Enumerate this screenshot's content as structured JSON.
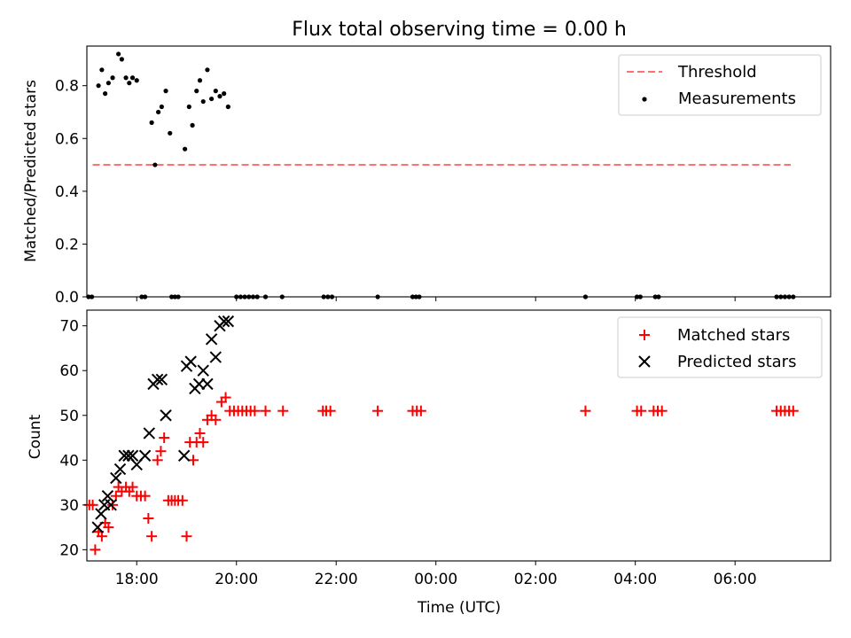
{
  "title": "Flux total observing time = 0.00 h",
  "chart_data": [
    {
      "type": "scatter",
      "ylabel": "Matched/Predicted stars",
      "xlabel": "",
      "xlim": [
        "17:00",
        "07:55"
      ],
      "ylim": [
        0.0,
        0.95
      ],
      "yticks": [
        0.0,
        0.2,
        0.4,
        0.6,
        0.8
      ],
      "ytick_labels": [
        "0.0",
        "0.2",
        "0.4",
        "0.6",
        "0.8"
      ],
      "xticks": [
        "18:00",
        "20:00",
        "22:00",
        "00:00",
        "02:00",
        "04:00",
        "06:00"
      ],
      "legend_position": "top-right",
      "grid": false,
      "threshold": {
        "name": "Threshold",
        "value": 0.5,
        "x_start": "17:07",
        "x_end": "07:07",
        "color": "#ff7070",
        "style": "dashed"
      },
      "series": [
        {
          "name": "Measurements",
          "marker": "dot",
          "color": "#000000",
          "points": [
            [
              "17:14",
              0.8
            ],
            [
              "17:18",
              0.86
            ],
            [
              "17:22",
              0.77
            ],
            [
              "17:26",
              0.81
            ],
            [
              "17:31",
              0.83
            ],
            [
              "17:38",
              0.92
            ],
            [
              "17:42",
              0.9
            ],
            [
              "17:47",
              0.83
            ],
            [
              "17:51",
              0.81
            ],
            [
              "17:55",
              0.83
            ],
            [
              "18:00",
              0.82
            ],
            [
              "18:18",
              0.66
            ],
            [
              "18:22",
              0.5
            ],
            [
              "18:26",
              0.7
            ],
            [
              "18:30",
              0.72
            ],
            [
              "18:35",
              0.78
            ],
            [
              "18:40",
              0.62
            ],
            [
              "18:58",
              0.56
            ],
            [
              "19:03",
              0.72
            ],
            [
              "19:07",
              0.65
            ],
            [
              "19:12",
              0.78
            ],
            [
              "19:16",
              0.82
            ],
            [
              "19:20",
              0.74
            ],
            [
              "19:25",
              0.86
            ],
            [
              "19:30",
              0.75
            ],
            [
              "19:35",
              0.78
            ],
            [
              "19:40",
              0.76
            ],
            [
              "19:45",
              0.77
            ],
            [
              "19:50",
              0.72
            ],
            [
              "17:02",
              0.0
            ],
            [
              "17:06",
              0.0
            ],
            [
              "18:06",
              0.0
            ],
            [
              "18:10",
              0.0
            ],
            [
              "18:42",
              0.0
            ],
            [
              "18:46",
              0.0
            ],
            [
              "18:50",
              0.0
            ],
            [
              "20:00",
              0.0
            ],
            [
              "20:05",
              0.0
            ],
            [
              "20:10",
              0.0
            ],
            [
              "20:15",
              0.0
            ],
            [
              "20:20",
              0.0
            ],
            [
              "20:25",
              0.0
            ],
            [
              "20:35",
              0.0
            ],
            [
              "20:55",
              0.0
            ],
            [
              "21:45",
              0.0
            ],
            [
              "21:50",
              0.0
            ],
            [
              "21:55",
              0.0
            ],
            [
              "22:50",
              0.0
            ],
            [
              "23:32",
              0.0
            ],
            [
              "23:36",
              0.0
            ],
            [
              "23:40",
              0.0
            ],
            [
              "03:00",
              0.0
            ],
            [
              "04:02",
              0.0
            ],
            [
              "04:06",
              0.0
            ],
            [
              "04:24",
              0.0
            ],
            [
              "04:28",
              0.0
            ],
            [
              "06:50",
              0.0
            ],
            [
              "06:55",
              0.0
            ],
            [
              "07:00",
              0.0
            ],
            [
              "07:05",
              0.0
            ],
            [
              "07:10",
              0.0
            ]
          ]
        }
      ]
    },
    {
      "type": "scatter",
      "ylabel": "Count",
      "xlabel": "Time (UTC)",
      "xlim": [
        "17:00",
        "07:55"
      ],
      "ylim": [
        17.5,
        73.5
      ],
      "yticks": [
        20,
        30,
        40,
        50,
        60,
        70
      ],
      "ytick_labels": [
        "20",
        "30",
        "40",
        "50",
        "60",
        "70"
      ],
      "xticks": [
        "18:00",
        "20:00",
        "22:00",
        "00:00",
        "02:00",
        "04:00",
        "06:00"
      ],
      "legend_position": "top-right",
      "grid": false,
      "series": [
        {
          "name": "Matched stars",
          "marker": "plus",
          "color": "#ff0000",
          "points": [
            [
              "17:03",
              30
            ],
            [
              "17:07",
              30
            ],
            [
              "17:10",
              20
            ],
            [
              "17:14",
              24
            ],
            [
              "17:18",
              23
            ],
            [
              "17:22",
              26
            ],
            [
              "17:26",
              25
            ],
            [
              "17:31",
              30
            ],
            [
              "17:35",
              32
            ],
            [
              "17:38",
              34
            ],
            [
              "17:42",
              33
            ],
            [
              "17:47",
              34
            ],
            [
              "17:51",
              33
            ],
            [
              "17:55",
              34
            ],
            [
              "18:00",
              32
            ],
            [
              "18:05",
              32
            ],
            [
              "18:10",
              32
            ],
            [
              "18:14",
              27
            ],
            [
              "18:18",
              23
            ],
            [
              "18:25",
              40
            ],
            [
              "18:29",
              42
            ],
            [
              "18:33",
              45
            ],
            [
              "18:38",
              31
            ],
            [
              "18:42",
              31
            ],
            [
              "18:46",
              31
            ],
            [
              "18:50",
              31
            ],
            [
              "18:55",
              31
            ],
            [
              "19:00",
              23
            ],
            [
              "19:04",
              44
            ],
            [
              "19:08",
              40
            ],
            [
              "19:12",
              44
            ],
            [
              "19:16",
              46
            ],
            [
              "19:20",
              44
            ],
            [
              "19:25",
              49
            ],
            [
              "19:30",
              50
            ],
            [
              "19:35",
              49
            ],
            [
              "19:42",
              53
            ],
            [
              "19:47",
              54
            ],
            [
              "19:52",
              51
            ],
            [
              "19:57",
              51
            ],
            [
              "20:02",
              51
            ],
            [
              "20:07",
              51
            ],
            [
              "20:12",
              51
            ],
            [
              "20:17",
              51
            ],
            [
              "20:22",
              51
            ],
            [
              "20:35",
              51
            ],
            [
              "20:56",
              51
            ],
            [
              "21:44",
              51
            ],
            [
              "21:48",
              51
            ],
            [
              "21:53",
              51
            ],
            [
              "22:50",
              51
            ],
            [
              "23:32",
              51
            ],
            [
              "23:37",
              51
            ],
            [
              "23:42",
              51
            ],
            [
              "03:00",
              51
            ],
            [
              "04:02",
              51
            ],
            [
              "04:07",
              51
            ],
            [
              "04:22",
              51
            ],
            [
              "04:27",
              51
            ],
            [
              "04:32",
              51
            ],
            [
              "06:50",
              51
            ],
            [
              "06:55",
              51
            ],
            [
              "07:00",
              51
            ],
            [
              "07:05",
              51
            ],
            [
              "07:10",
              51
            ]
          ]
        },
        {
          "name": "Predicted stars",
          "marker": "x",
          "color": "#000000",
          "points": [
            [
              "17:13",
              25
            ],
            [
              "17:17",
              28
            ],
            [
              "17:21",
              30
            ],
            [
              "17:25",
              32
            ],
            [
              "17:29",
              30
            ],
            [
              "17:35",
              36
            ],
            [
              "17:40",
              38
            ],
            [
              "17:45",
              41
            ],
            [
              "17:50",
              41
            ],
            [
              "17:55",
              41
            ],
            [
              "18:00",
              39
            ],
            [
              "18:10",
              41
            ],
            [
              "18:15",
              46
            ],
            [
              "18:20",
              57
            ],
            [
              "18:25",
              58
            ],
            [
              "18:30",
              58
            ],
            [
              "18:35",
              50
            ],
            [
              "18:57",
              41
            ],
            [
              "19:00",
              61
            ],
            [
              "19:05",
              62
            ],
            [
              "19:10",
              56
            ],
            [
              "19:15",
              57
            ],
            [
              "19:20",
              60
            ],
            [
              "19:25",
              57
            ],
            [
              "19:30",
              67
            ],
            [
              "19:35",
              63
            ],
            [
              "19:40",
              70
            ],
            [
              "19:45",
              71
            ],
            [
              "19:50",
              71
            ]
          ]
        }
      ]
    }
  ]
}
